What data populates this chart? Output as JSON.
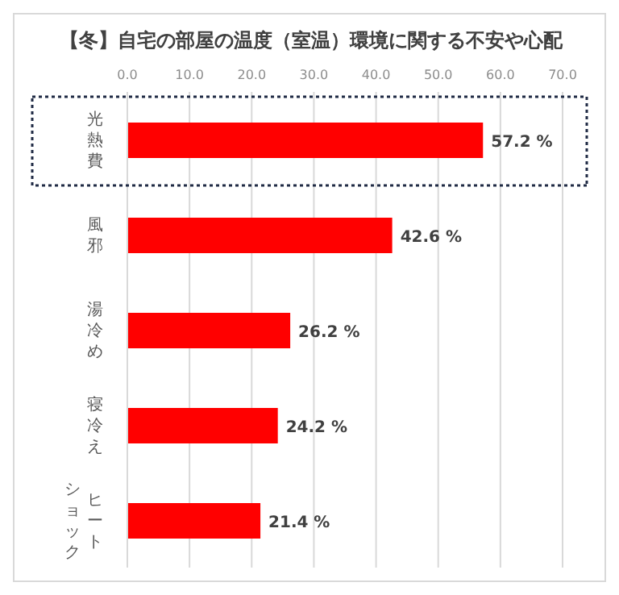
{
  "chart_data": {
    "type": "bar",
    "orientation": "horizontal",
    "title": "【冬】自宅の部屋の温度（室温）環境に関する不安や心配",
    "categories": [
      "光熱費",
      "風邪",
      "湯冷め",
      "寝冷え",
      "ヒートショック"
    ],
    "values": [
      57.2,
      42.6,
      26.2,
      24.2,
      21.4
    ],
    "color": "#ff0000",
    "value_labels": [
      "57.2 %",
      "42.6 %",
      "26.2 %",
      "24.2 %",
      "21.4 %"
    ],
    "xlim": [
      0,
      70
    ],
    "xticks": [
      {
        "value": 0,
        "label": "0.0"
      },
      {
        "value": 10,
        "label": "10.0"
      },
      {
        "value": 20,
        "label": "20.0"
      },
      {
        "value": 30,
        "label": "30.0"
      },
      {
        "value": 40,
        "label": "40.0"
      },
      {
        "value": 50,
        "label": "50.0"
      },
      {
        "value": 60,
        "label": "60.0"
      },
      {
        "value": 70,
        "label": "70.0"
      }
    ],
    "grid": "x",
    "legend": false
  }
}
